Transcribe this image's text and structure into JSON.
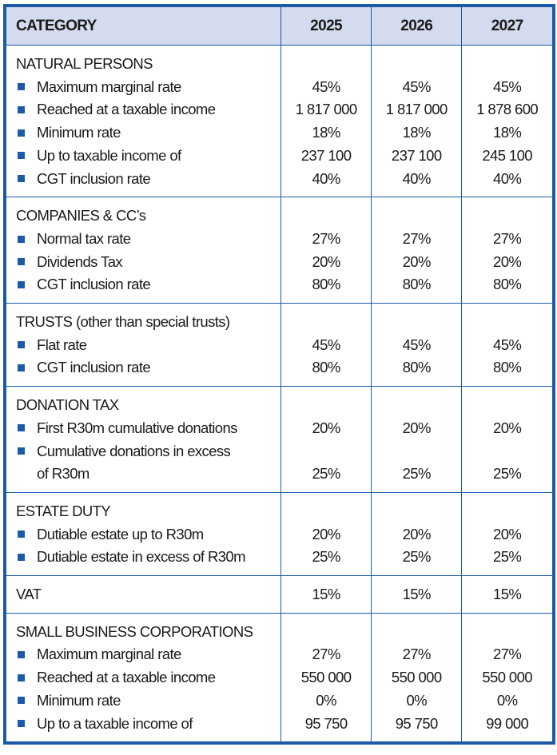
{
  "header": {
    "category": "CATEGORY",
    "years": [
      "2025",
      "2026",
      "2027"
    ]
  },
  "colors": {
    "border": "#1b5aa6",
    "header_bg": "#d5dbee",
    "bullet": "#1b5aa6"
  },
  "sections": [
    {
      "title": "NATURAL PERSONS",
      "values": null,
      "items": [
        {
          "label": [
            "Maximum marginal rate"
          ],
          "values": [
            "45%",
            "45%",
            "45%"
          ]
        },
        {
          "label": [
            "Reached at a taxable income"
          ],
          "values": [
            "1 817 000",
            "1 817 000",
            "1 878 600"
          ]
        },
        {
          "label": [
            "Minimum rate"
          ],
          "values": [
            "18%",
            "18%",
            "18%"
          ]
        },
        {
          "label": [
            "Up to taxable income of"
          ],
          "values": [
            "237 100",
            "237 100",
            "245 100"
          ]
        },
        {
          "label": [
            "CGT inclusion rate"
          ],
          "values": [
            "40%",
            "40%",
            "40%"
          ]
        }
      ]
    },
    {
      "title": "COMPANIES & CC’s",
      "values": null,
      "items": [
        {
          "label": [
            "Normal tax rate"
          ],
          "values": [
            "27%",
            "27%",
            "27%"
          ]
        },
        {
          "label": [
            "Dividends Tax"
          ],
          "values": [
            "20%",
            "20%",
            "20%"
          ]
        },
        {
          "label": [
            "CGT inclusion rate"
          ],
          "values": [
            "80%",
            "80%",
            "80%"
          ]
        }
      ]
    },
    {
      "title": "TRUSTS (other than special trusts)",
      "values": null,
      "items": [
        {
          "label": [
            "Flat rate"
          ],
          "values": [
            "45%",
            "45%",
            "45%"
          ]
        },
        {
          "label": [
            "CGT inclusion rate"
          ],
          "values": [
            "80%",
            "80%",
            "80%"
          ]
        }
      ]
    },
    {
      "title": "DONATION TAX",
      "values": null,
      "items": [
        {
          "label": [
            "First R30m cumulative donations"
          ],
          "values": [
            "20%",
            "20%",
            "20%"
          ]
        },
        {
          "label": [
            "Cumulative donations in excess",
            "of R30m"
          ],
          "values": [
            "25%",
            "25%",
            "25%"
          ]
        }
      ]
    },
    {
      "title": "ESTATE DUTY",
      "values": null,
      "items": [
        {
          "label": [
            "Dutiable estate up to R30m"
          ],
          "values": [
            "20%",
            "20%",
            "20%"
          ]
        },
        {
          "label": [
            "Dutiable estate in excess of R30m"
          ],
          "values": [
            "25%",
            "25%",
            "25%"
          ]
        }
      ]
    },
    {
      "title": "VAT",
      "values": [
        "15%",
        "15%",
        "15%"
      ],
      "items": []
    },
    {
      "title": "SMALL BUSINESS CORPORATIONS",
      "values": null,
      "items": [
        {
          "label": [
            "Maximum marginal rate"
          ],
          "values": [
            "27%",
            "27%",
            "27%"
          ]
        },
        {
          "label": [
            "Reached at a taxable income"
          ],
          "values": [
            "550 000",
            "550 000",
            "550 000"
          ]
        },
        {
          "label": [
            "Minimum rate"
          ],
          "values": [
            "0%",
            "0%",
            "0%"
          ]
        },
        {
          "label": [
            "Up to a taxable income of"
          ],
          "values": [
            "95 750",
            "95 750",
            "99 000"
          ]
        }
      ]
    }
  ]
}
